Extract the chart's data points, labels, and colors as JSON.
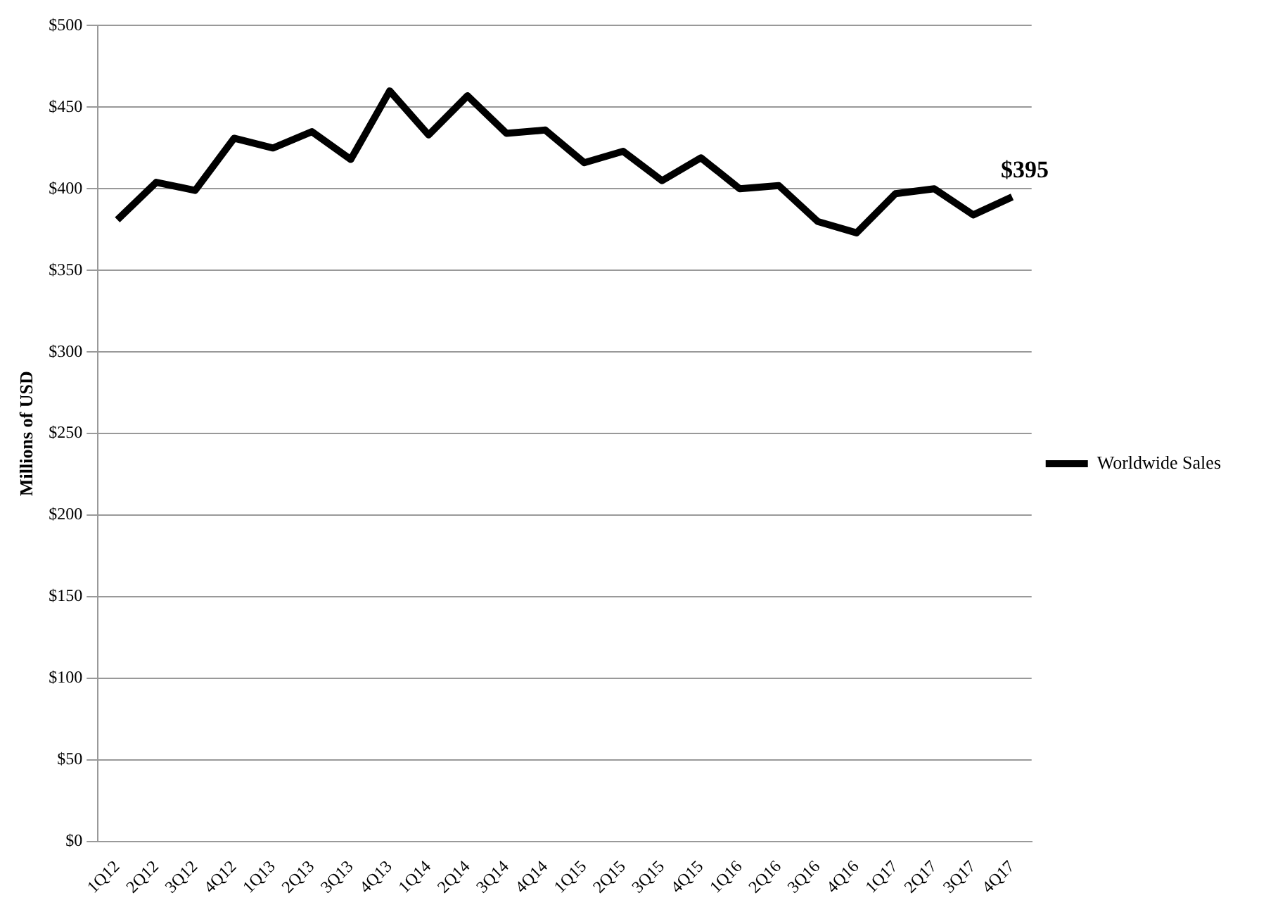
{
  "chart_data": {
    "type": "line",
    "ylabel": "Millions of USD",
    "categories": [
      "1Q12",
      "2Q12",
      "3Q12",
      "4Q12",
      "1Q13",
      "2Q13",
      "3Q13",
      "4Q13",
      "1Q14",
      "2Q14",
      "3Q14",
      "4Q14",
      "1Q15",
      "2Q15",
      "3Q15",
      "4Q15",
      "1Q16",
      "2Q16",
      "3Q16",
      "4Q16",
      "1Q17",
      "2Q17",
      "3Q17",
      "4Q17"
    ],
    "series": [
      {
        "name": "Worldwide Sales",
        "color": "#000000",
        "values": [
          381,
          404,
          399,
          431,
          425,
          435,
          418,
          460,
          433,
          457,
          434,
          436,
          416,
          423,
          405,
          419,
          400,
          402,
          380,
          373,
          397,
          400,
          384,
          395
        ]
      }
    ],
    "annotations": [
      {
        "text": "$395",
        "x": "4Q17",
        "y": 395
      }
    ],
    "ylim": [
      0,
      500
    ],
    "yticks": [
      {
        "value": 0,
        "label": "$0"
      },
      {
        "value": 50,
        "label": "$50"
      },
      {
        "value": 100,
        "label": "$100"
      },
      {
        "value": 150,
        "label": "$150"
      },
      {
        "value": 200,
        "label": "$200"
      },
      {
        "value": 250,
        "label": "$250"
      },
      {
        "value": 300,
        "label": "$300"
      },
      {
        "value": 350,
        "label": "$350"
      },
      {
        "value": 400,
        "label": "$400"
      },
      {
        "value": 450,
        "label": "$450"
      },
      {
        "value": 500,
        "label": "$500"
      }
    ],
    "grid": "y",
    "legend": "right",
    "marker": "none",
    "line_style": "solid"
  }
}
